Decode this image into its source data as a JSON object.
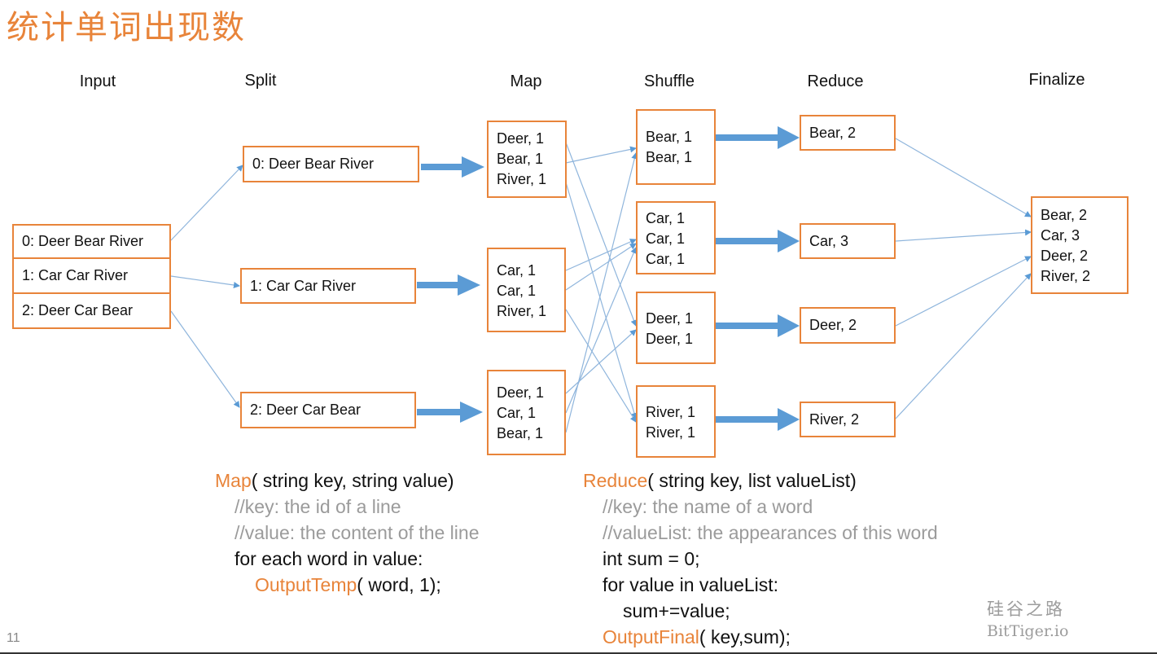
{
  "title": "统计单词出现数",
  "columns": {
    "input": "Input",
    "split": "Split",
    "map": "Map",
    "shuffle": "Shuffle",
    "reduce": "Reduce",
    "finalize": "Finalize"
  },
  "input_rows": [
    "0: Deer Bear River",
    "1: Car Car River",
    "2: Deer Car Bear"
  ],
  "split_boxes": [
    "0: Deer Bear River",
    "1: Car Car River",
    "2: Deer Car Bear"
  ],
  "map_boxes": [
    [
      "Deer, 1",
      "Bear, 1",
      "River, 1"
    ],
    [
      "Car, 1",
      "Car, 1",
      "River, 1"
    ],
    [
      "Deer, 1",
      "Car, 1",
      "Bear, 1"
    ]
  ],
  "shuffle_boxes": [
    [
      "Bear, 1",
      "Bear, 1"
    ],
    [
      "Car, 1",
      "Car, 1",
      "Car, 1"
    ],
    [
      "Deer, 1",
      "Deer, 1"
    ],
    [
      "River, 1",
      "River, 1"
    ]
  ],
  "reduce_boxes": [
    "Bear, 2",
    "Car, 3",
    "Deer, 2",
    "River, 2"
  ],
  "finalize_box": [
    "Bear, 2",
    "Car, 3",
    "Deer, 2",
    "River, 2"
  ],
  "map_code": {
    "fn": "Map",
    "sig": "( string key, string value)",
    "c1": "//key: the id of a line",
    "c2": "//value: the content of the line",
    "loop": "for each word in value:",
    "emit_fn": "OutputTemp",
    "emit_args": "( word, 1);"
  },
  "reduce_code": {
    "fn": "Reduce",
    "sig": "( string key, list valueList)",
    "c1": "//key: the name of a word",
    "c2": "//valueList: the appearances of this word",
    "init": "int sum = 0;",
    "loop": "for value in valueList:",
    "acc": "sum+=value;",
    "emit_fn": "OutputFinal",
    "emit_args": "( key,sum);"
  },
  "watermark": {
    "cn": "硅谷之路",
    "en": "BitTiger.io"
  },
  "page_number": "11",
  "colors": {
    "accent": "#e8843a",
    "arrow": "#5b9bd5",
    "thin_arrow": "#8fb5dc",
    "comment": "#9b9b9b"
  }
}
